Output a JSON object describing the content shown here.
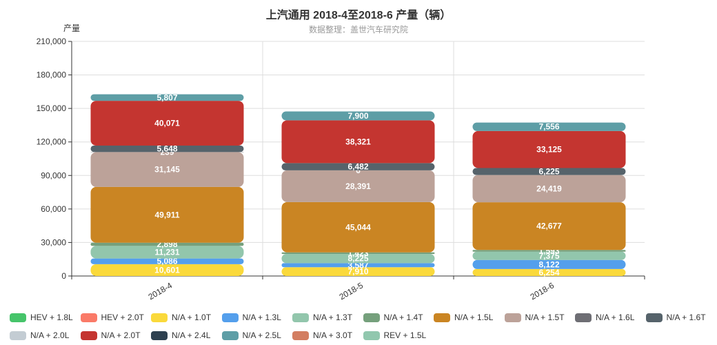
{
  "title": "上汽通用 2018-4至2018-6 产量（辆）",
  "subtitle": "数据整理：盖世汽车研究院",
  "chart_data": {
    "type": "bar",
    "stacked": true,
    "title": "上汽通用 2018-4至2018-6 产量（辆）",
    "subtitle": "数据整理：盖世汽车研究院",
    "ylabel": "产量",
    "xlabel": "",
    "categories": [
      "2018-4",
      "2018-5",
      "2018-6"
    ],
    "ylim": [
      0,
      210000
    ],
    "yticks": [
      0,
      30000,
      60000,
      90000,
      120000,
      150000,
      180000,
      210000
    ],
    "ytick_labels": [
      "0",
      "30,000",
      "60,000",
      "90,000",
      "120,000",
      "150,000",
      "180,000",
      "210,000"
    ],
    "grid": true,
    "legend_position": "bottom",
    "series": [
      {
        "name": "HEV + 1.8L",
        "color": "#46c46a",
        "values": [
          0,
          0,
          0
        ]
      },
      {
        "name": "HEV + 2.0T",
        "color": "#fa7a68",
        "values": [
          0,
          0,
          0
        ]
      },
      {
        "name": "N/A + 1.0T",
        "color": "#fad93b",
        "values": [
          10601,
          7910,
          6254
        ]
      },
      {
        "name": "N/A + 1.3L",
        "color": "#549fec",
        "values": [
          5086,
          3587,
          8122
        ]
      },
      {
        "name": "N/A + 1.3T",
        "color": "#92c6ac",
        "values": [
          11231,
          8225,
          7375
        ]
      },
      {
        "name": "N/A + 1.4T",
        "color": "#75a07c",
        "values": [
          2898,
          1423,
          1593
        ]
      },
      {
        "name": "N/A + 1.5L",
        "color": "#ca8523",
        "values": [
          49911,
          45044,
          42677
        ]
      },
      {
        "name": "N/A + 1.5T",
        "color": "#bca299",
        "values": [
          31145,
          28391,
          24419
        ]
      },
      {
        "name": "N/A + 1.6L",
        "color": "#6e6e74",
        "values": [
          239,
          6,
          0
        ]
      },
      {
        "name": "N/A + 1.6T",
        "color": "#56636b",
        "values": [
          5648,
          6482,
          6225
        ]
      },
      {
        "name": "N/A + 2.0L",
        "color": "#c3ccd3",
        "values": [
          0,
          0,
          0
        ]
      },
      {
        "name": "N/A + 2.0T",
        "color": "#c43530",
        "values": [
          40071,
          38321,
          33125
        ]
      },
      {
        "name": "N/A + 2.4L",
        "color": "#2e4150",
        "values": [
          0,
          0,
          0
        ]
      },
      {
        "name": "N/A + 2.5L",
        "color": "#5e9ea6",
        "values": [
          5807,
          7900,
          7556
        ]
      },
      {
        "name": "N/A + 3.0T",
        "color": "#d37e61",
        "values": [
          0,
          0,
          0
        ]
      },
      {
        "name": "REV + 1.5L",
        "color": "#91c7ae",
        "values": [
          0,
          0,
          0
        ]
      }
    ]
  }
}
